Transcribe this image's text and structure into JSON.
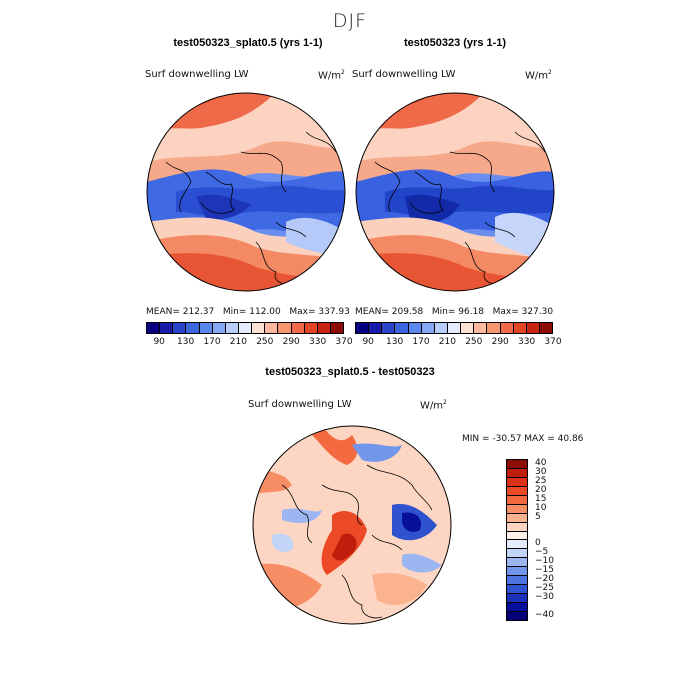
{
  "season": "DJF",
  "panels": {
    "left": {
      "title": "test050323_splat0.5 (yrs 1-1)",
      "variable": "Surf downwelling LW",
      "units": "W/m",
      "stats": {
        "mean": "212.37",
        "min": "112.00",
        "max": "337.93"
      }
    },
    "right": {
      "title": "test050323 (yrs 1-1)",
      "variable": "Surf downwelling LW",
      "units": "W/m",
      "stats": {
        "mean": "209.58",
        "min": "96.18",
        "max": "327.30"
      }
    },
    "diff": {
      "title": "test050323_splat0.5 - test050323",
      "variable": "Surf downwelling LW",
      "units": "W/m",
      "stats_text": "MIN = -30.57  MAX =  40.86"
    }
  },
  "labels": {
    "mean": "MEAN=",
    "min": "Min=",
    "max": "Max=",
    "units_sup": "2"
  },
  "colorbar_main": {
    "ticks": [
      "90",
      "130",
      "170",
      "210",
      "250",
      "290",
      "330",
      "370"
    ],
    "colors": [
      "#08007e",
      "#1a1aa8",
      "#2d44c8",
      "#3c66dd",
      "#5b88ee",
      "#88aaf5",
      "#b9cdfa",
      "#e4ecfd",
      "#fde1d3",
      "#fcb9a0",
      "#f89370",
      "#f06a48",
      "#e24426",
      "#c92512",
      "#8c0d05"
    ]
  },
  "colorbar_diff": {
    "ticks": [
      "40",
      "30",
      "25",
      "20",
      "15",
      "10",
      "5",
      "0",
      "−5",
      "−10",
      "−15",
      "−20",
      "−25",
      "−30",
      "−40"
    ],
    "colors": [
      "#8c0d05",
      "#c01e0c",
      "#dc3318",
      "#ec4a26",
      "#f36a40",
      "#f78d65",
      "#fab28f",
      "#fcd6c3",
      "#fdf2ea",
      "#e5edfc",
      "#c2d4f8",
      "#9cb6f2",
      "#7196ea",
      "#4d74e0",
      "#2f52cf",
      "#1932b8",
      "#08109a",
      "#050078"
    ]
  }
}
